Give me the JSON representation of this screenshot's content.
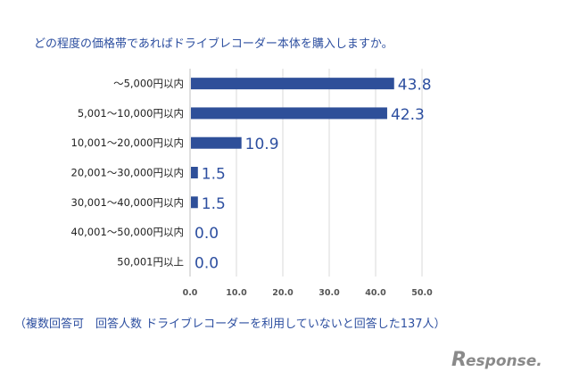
{
  "chart_data": {
    "type": "bar",
    "orientation": "horizontal",
    "title": "どの程度の価格帯であればドライブレコーダー本体を購入しますか。",
    "categories": [
      "～5,000円以内",
      "5,001～10,000円以内",
      "10,001～20,000円以内",
      "20,001～30,000円以内",
      "30,001～40,000円以内",
      "40,001～50,000円以内",
      "50,001円以上"
    ],
    "values": [
      43.8,
      42.3,
      10.9,
      1.5,
      1.5,
      0.0,
      0.0
    ],
    "value_labels": [
      "43.8",
      "42.3",
      "10.9",
      "1.5",
      "1.5",
      "0.0",
      "0.0"
    ],
    "x_ticks": [
      "0.0",
      "10.0",
      "20.0",
      "30.0",
      "40.0",
      "50.0"
    ],
    "xlim": [
      0,
      50
    ],
    "grid": true,
    "bar_color": "#2e4f99",
    "note": "（複数回答可　回答人数 ドライブレコーダーを利用していないと回答した137人）"
  },
  "watermark": {
    "brand_initial": "R",
    "brand_rest": "esponse."
  }
}
